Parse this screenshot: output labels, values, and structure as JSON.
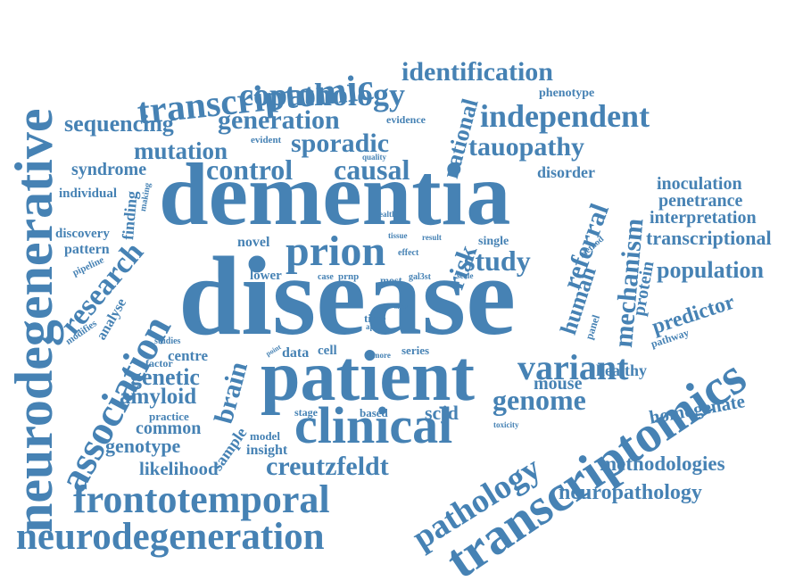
{
  "word_cloud": {
    "color": "#4682b4",
    "background": "#ffffff",
    "words": [
      "dementia",
      "disease",
      "patient",
      "neurodegenerative",
      "transcriptomic",
      "transcriptomics",
      "neurodegeneration",
      "frontotemporal",
      "clinical",
      "association",
      "prion",
      "copathology",
      "independent",
      "identification",
      "generation",
      "sequencing",
      "mutation",
      "sporadic",
      "tauopathy",
      "control",
      "causal",
      "syndrome",
      "variant",
      "research",
      "population",
      "mechanism",
      "study",
      "pathology",
      "creutzfeldt",
      "genome",
      "genetic",
      "amyloid",
      "brain",
      "genotype",
      "common",
      "likelihood",
      "neuropathology",
      "methodologies",
      "homogenate",
      "transcriptional",
      "interpretation",
      "penetrance",
      "inoculation",
      "predictor",
      "national",
      "risk",
      "referral",
      "human",
      "protein",
      "mouse",
      "healthy",
      "scjd",
      "insight",
      "model",
      "sample",
      "centre",
      "factor",
      "practice",
      "discovery",
      "pattern",
      "pipeline",
      "analyse",
      "modifies",
      "individual",
      "finding",
      "making",
      "evident",
      "quality",
      "evidence",
      "phenotype",
      "disorder",
      "health",
      "tissue",
      "result",
      "method",
      "novel",
      "lower",
      "case",
      "prnp",
      "most",
      "gal3st",
      "effect",
      "scale",
      "single",
      "time",
      "apoe",
      "snps",
      "data",
      "cell",
      "point",
      "more",
      "series",
      "stage",
      "based",
      "toxicity",
      "studies",
      "panel",
      "pathway"
    ]
  }
}
